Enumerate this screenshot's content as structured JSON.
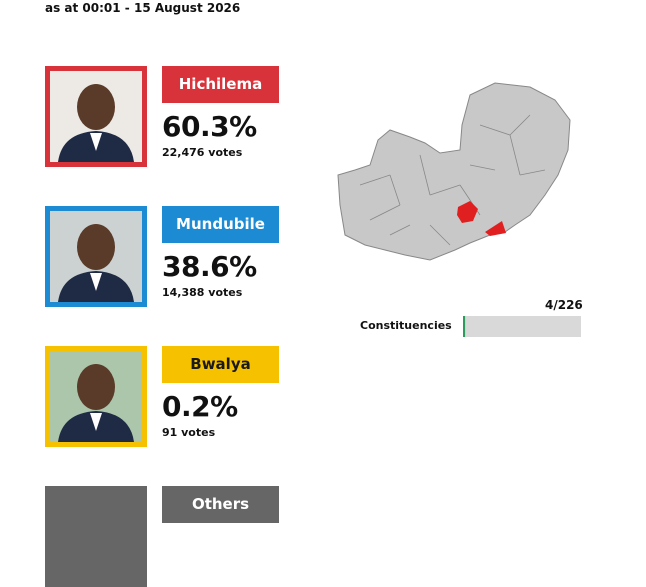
{
  "header": {
    "subtitle": "as at 00:01 - 15 August 2026"
  },
  "candidates": [
    {
      "name": "Hichilema",
      "percent": "60.3%",
      "votes": "22,476 votes",
      "color": "#d8333b",
      "text_color": "#ffffff"
    },
    {
      "name": "Mundubile",
      "percent": "38.6%",
      "votes": "14,388 votes",
      "color": "#1c8bd3",
      "text_color": "#ffffff"
    },
    {
      "name": "Bwalya",
      "percent": "0.2%",
      "votes": "91 votes",
      "color": "#f6c200",
      "text_color": "#1a1a1a"
    },
    {
      "name": "Others",
      "percent": null,
      "votes": null,
      "color": "#666666",
      "text_color": "#ffffff"
    }
  ],
  "progress": {
    "name": "Constituencies",
    "label": "4/226",
    "reported": 4,
    "total": 226
  }
}
